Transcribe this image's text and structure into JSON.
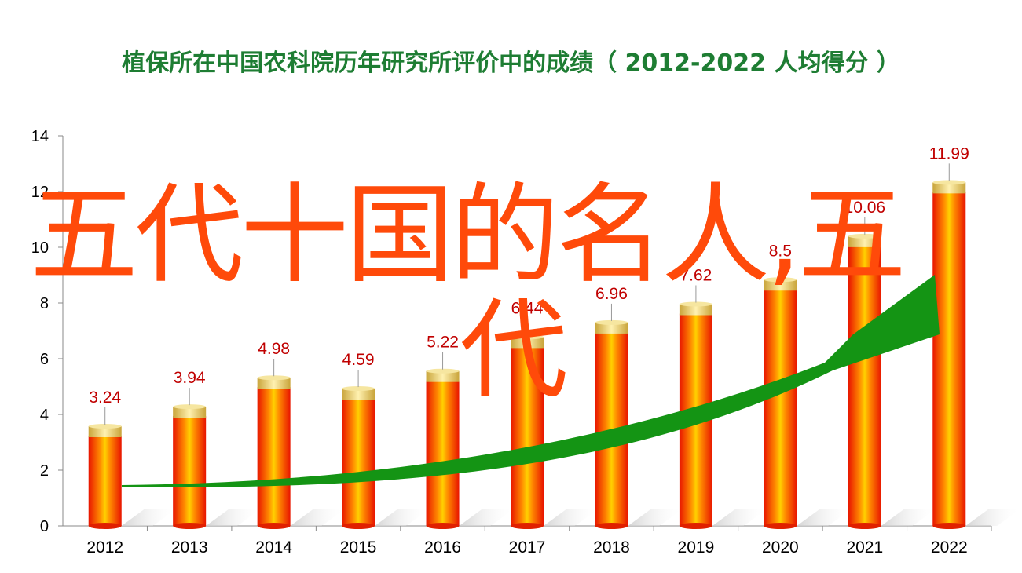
{
  "chart_data": {
    "type": "bar",
    "title": "植保所在中国农科院历年研究所评价中的成绩（ 2012-2022  人均得分 ）",
    "categories": [
      "2012",
      "2013",
      "2014",
      "2015",
      "2016",
      "2017",
      "2018",
      "2019",
      "2020",
      "2021",
      "2022"
    ],
    "values": [
      3.24,
      3.94,
      4.98,
      4.59,
      5.22,
      6.44,
      6.96,
      7.62,
      8.5,
      10.06,
      11.99
    ],
    "value_labels": [
      "3.24",
      "3.94",
      "4.98",
      "4.59",
      "5.22",
      "6.44",
      "6.96",
      "7.62",
      "8.5",
      "10.06",
      "11.99"
    ],
    "ylim": [
      0,
      14
    ],
    "yticks": [
      "0",
      "2",
      "4",
      "6",
      "8",
      "10",
      "12",
      "14"
    ],
    "grid": false,
    "legend": "none",
    "colors": {
      "bar": "#ff2a00",
      "bar_highlight": "#ffc000",
      "cap": "#e3c25c",
      "label": "#c00000",
      "arrow": "#149414",
      "title": "#1e7d33"
    }
  },
  "overlay": {
    "line1": "五代十国的名人,五",
    "line2": "代",
    "color": "#ff4a0a"
  }
}
